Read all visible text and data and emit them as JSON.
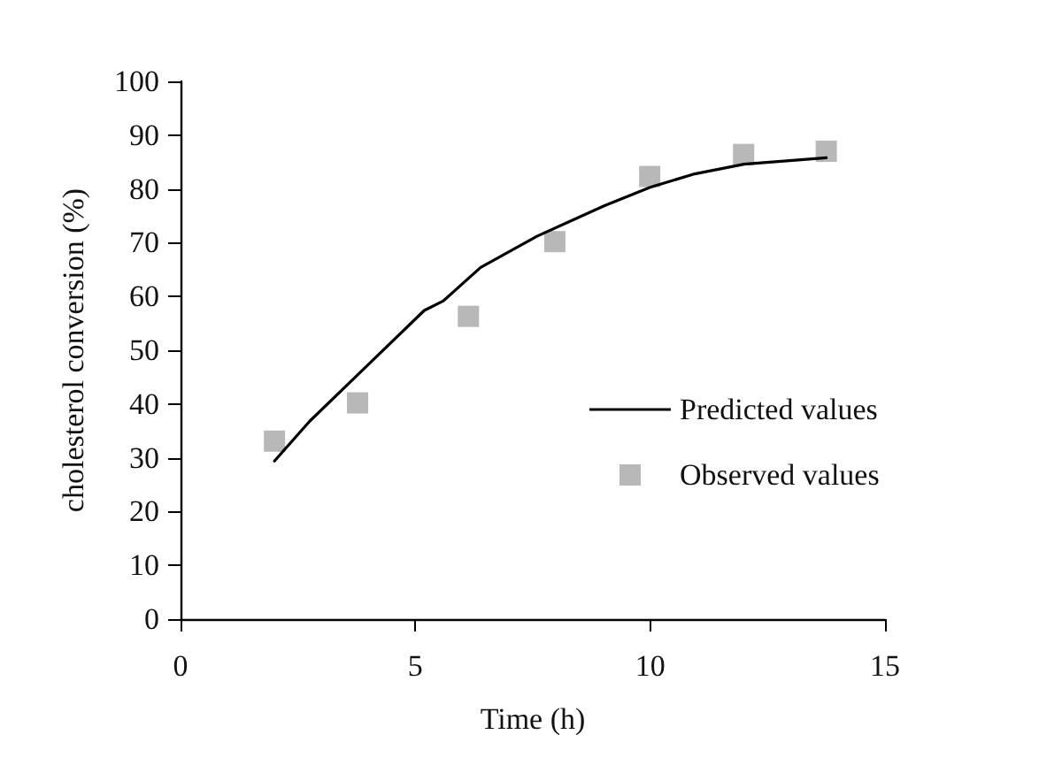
{
  "chart_data": {
    "type": "line",
    "xlabel": "Time (h)",
    "ylabel": "cholesterol conversion (%)",
    "xlim": [
      0,
      15
    ],
    "xticks": [
      0,
      5,
      10,
      15
    ],
    "ylim": [
      0,
      100
    ],
    "yticks": [
      0,
      10,
      20,
      30,
      40,
      50,
      60,
      70,
      80,
      90,
      100
    ],
    "grid": false,
    "legend": "right",
    "series": [
      {
        "name": "Predicted values",
        "type": "line",
        "color": "#000000",
        "marker": "none",
        "line_style": "solid",
        "x": [
          2,
          2.75,
          3.77,
          5.19,
          5.6,
          6.39,
          7.59,
          9.03,
          10,
          10.95,
          12,
          13.75
        ],
        "values": [
          29.4,
          36.8,
          45.4,
          57.4,
          59.2,
          65.4,
          71.2,
          76.9,
          80.3,
          82.8,
          84.6,
          85.8
        ]
      },
      {
        "name": "Observed values",
        "type": "scatter",
        "color": "#a6a6a6",
        "marker": "square",
        "x": [
          2,
          3.77,
          6.13,
          7.97,
          9.99,
          11.99,
          13.75
        ],
        "values": [
          33.1,
          40.2,
          56.3,
          70.2,
          82.3,
          86.4,
          87.0
        ]
      }
    ]
  }
}
